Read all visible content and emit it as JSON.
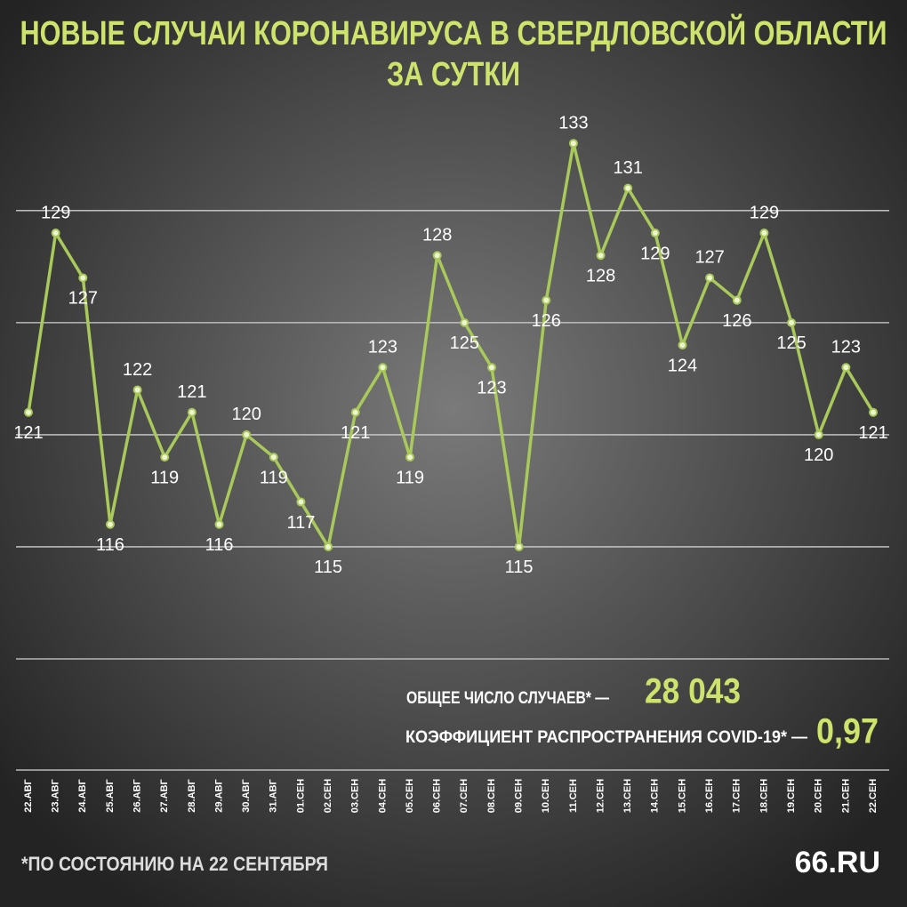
{
  "chart_data": {
    "type": "line",
    "title": "НОВЫЕ СЛУЧАИ КОРОНАВИРУСА В СВЕРДЛОВСКОЙ ОБЛАСТИ",
    "subtitle": "ЗА СУТКИ",
    "categories": [
      "22.АВГ",
      "23.АВГ",
      "24.АВГ",
      "25.АВГ",
      "26.АВГ",
      "27.АВГ",
      "28.АВГ",
      "29.АВГ",
      "30.АВГ",
      "31.АВГ",
      "01.СЕН",
      "02.СЕН",
      "03.СЕН",
      "04.СЕН",
      "05.СЕН",
      "06.СЕН",
      "07.СЕН",
      "08.СЕН",
      "09.СЕН",
      "10.СЕН",
      "11.СЕН",
      "12.СЕН",
      "13.СЕН",
      "14.СЕН",
      "15.СЕН",
      "16.СЕН",
      "17.СЕН",
      "18.СЕН",
      "19.СЕН",
      "20.СЕН",
      "21.СЕН",
      "22.СЕН"
    ],
    "values": [
      121,
      129,
      127,
      116,
      122,
      119,
      121,
      116,
      120,
      119,
      117,
      115,
      121,
      123,
      119,
      128,
      125,
      123,
      115,
      126,
      133,
      128,
      131,
      129,
      124,
      127,
      126,
      129,
      125,
      120,
      123,
      121
    ],
    "color": "#a9c95b",
    "ylim": [
      110,
      134
    ],
    "yticks": [
      110,
      115,
      120,
      125,
      130
    ],
    "grid": true,
    "total_label": "ОБЩЕЕ ЧИСЛО СЛУЧАЕВ* —",
    "total_value": "28 043",
    "rate_label": "КОЭФФИЦИЕНТ РАСПРОСТРАНЕНИЯ COVID-19* —",
    "rate_value": "0,97",
    "footnote": "*ПО СОСТОЯНИЮ НА 22 СЕНТЯБРЯ",
    "logo": "66.RU"
  }
}
